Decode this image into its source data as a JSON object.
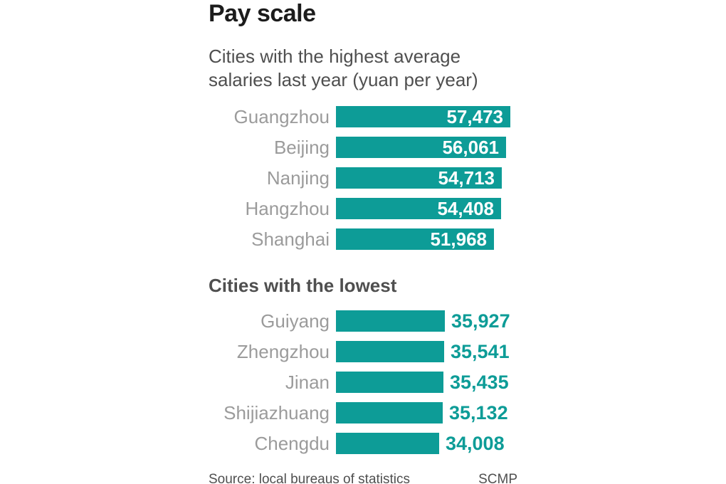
{
  "title": "Pay scale",
  "source": "Source: local bureaus of statistics",
  "credit": "SCMP",
  "colors": {
    "bar_teal": "#0d9c97",
    "value_inside": "#ffffff",
    "value_outside": "#0d9c97",
    "label_gray": "#9b9b9b",
    "heading_gray": "#4f4f4f",
    "title_black": "#1c1c1c",
    "background": "#ffffff"
  },
  "chart_data": {
    "type": "bar",
    "orientation": "horizontal",
    "title": "Pay scale",
    "unit": "yuan per year",
    "xlim": [
      0,
      57473
    ],
    "grid": false,
    "legend": false,
    "sections": [
      {
        "heading": "Cities with the highest average salaries last year (yuan per year)",
        "value_label_position": "inside-right",
        "rows": [
          {
            "city": "Guangzhou",
            "value": 57473,
            "display": "57,473"
          },
          {
            "city": "Beijing",
            "value": 56061,
            "display": "56,061"
          },
          {
            "city": "Nanjing",
            "value": 54713,
            "display": "54,713"
          },
          {
            "city": "Hangzhou",
            "value": 54408,
            "display": "54,408"
          },
          {
            "city": "Shanghai",
            "value": 51968,
            "display": "51,968"
          }
        ]
      },
      {
        "heading": "Cities with the lowest",
        "value_label_position": "outside-right",
        "rows": [
          {
            "city": "Guiyang",
            "value": 35927,
            "display": "35,927"
          },
          {
            "city": "Zhengzhou",
            "value": 35541,
            "display": "35,541"
          },
          {
            "city": "Jinan",
            "value": 35435,
            "display": "35,435"
          },
          {
            "city": "Shijiazhuang",
            "value": 35132,
            "display": "35,132"
          },
          {
            "city": "Chengdu",
            "value": 34008,
            "display": "34,008"
          }
        ]
      }
    ]
  }
}
